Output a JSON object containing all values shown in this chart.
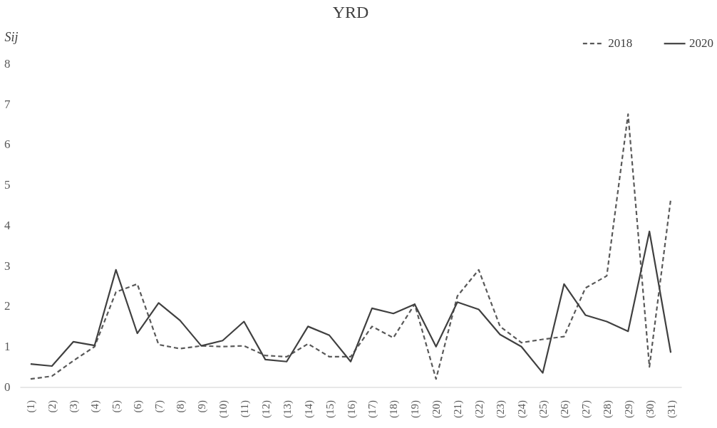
{
  "chart_data": {
    "type": "line",
    "title": "YRD",
    "ylabel": "Sij",
    "categories": [
      "(1)",
      "(2)",
      "(3)",
      "(4)",
      "(5)",
      "(6)",
      "(7)",
      "(8)",
      "(9)",
      "(10)",
      "(11)",
      "(12)",
      "(13)",
      "(14)",
      "(15)",
      "(16)",
      "(17)",
      "(18)",
      "(19)",
      "(20)",
      "(21)",
      "(22)",
      "(23)",
      "(24)",
      "(25)",
      "(26)",
      "(27)",
      "(28)",
      "(29)",
      "(30)",
      "(31)"
    ],
    "series": [
      {
        "name": "2018",
        "color": "#595959",
        "line_style": "dashed",
        "values": [
          0.2,
          0.27,
          0.65,
          1.0,
          2.35,
          2.55,
          1.05,
          0.95,
          1.02,
          1.0,
          1.02,
          0.78,
          0.75,
          1.07,
          0.75,
          0.75,
          1.5,
          1.22,
          2.05,
          0.2,
          2.25,
          2.9,
          1.5,
          1.1,
          1.18,
          1.25,
          2.45,
          2.75,
          6.75,
          0.5,
          4.65
        ]
      },
      {
        "name": "2020",
        "color": "#404040",
        "line_style": "solid",
        "values": [
          0.57,
          0.52,
          1.12,
          1.03,
          2.9,
          1.33,
          2.08,
          1.65,
          1.02,
          1.15,
          1.62,
          0.68,
          0.63,
          1.5,
          1.28,
          0.63,
          1.95,
          1.82,
          2.05,
          1.0,
          2.1,
          1.92,
          1.3,
          1.0,
          0.35,
          2.55,
          1.78,
          1.62,
          1.38,
          3.85,
          0.85
        ]
      }
    ],
    "ylim": [
      0,
      8
    ],
    "yticks": [
      0,
      1,
      2,
      3,
      4,
      5,
      6,
      7,
      8
    ],
    "grid": false,
    "legend": "top right",
    "marker": "none"
  }
}
